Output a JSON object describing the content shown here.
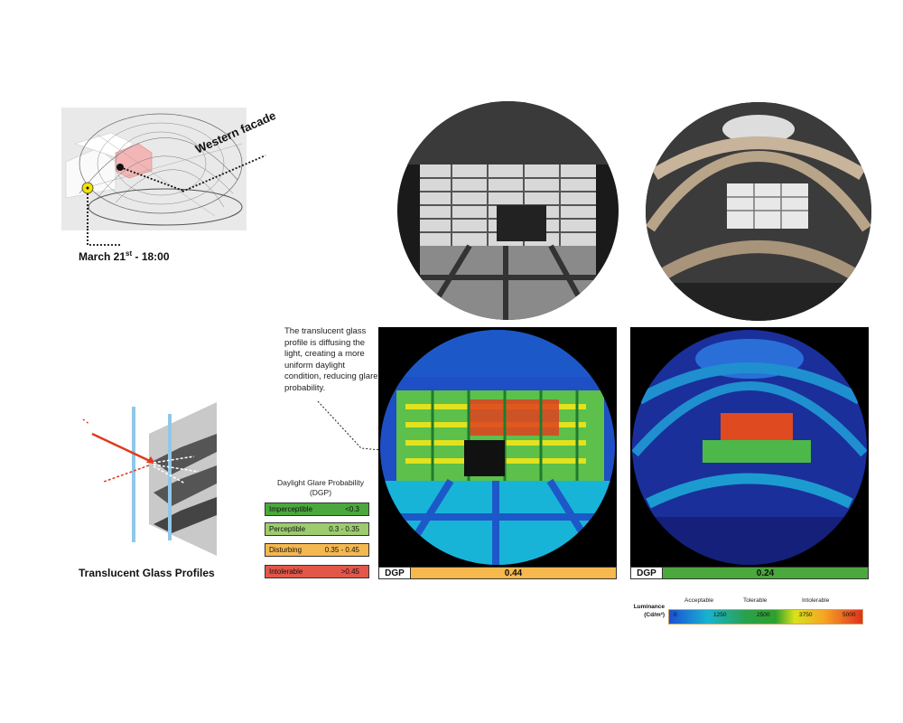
{
  "site": {
    "facade_label": "Western facade",
    "date_label_pre": "March 21",
    "date_label_sup": "st",
    "date_label_post": " - 18:00"
  },
  "profiles": {
    "title": "Translucent Glass Profiles"
  },
  "annotation": {
    "text": "The translucent glass profile is diffusing the light, creating a more uniform daylight condition, reducing glare probability."
  },
  "dgp_legend": {
    "title": "Daylight Glare Probability (DGP)",
    "rows": [
      {
        "label": "Imperceptible",
        "range": "<0.3",
        "color": "#4aa83c"
      },
      {
        "label": "Perceptible",
        "range": "0.3 - 0.35",
        "color": "#9ccc6e"
      },
      {
        "label": "Disturbing",
        "range": "0.35 - 0.45",
        "color": "#f5b850"
      },
      {
        "label": "Intolerable",
        "range": ">0.45",
        "color": "#e2574a"
      }
    ]
  },
  "renders": [
    {
      "dgp_label": "DGP",
      "dgp_value": "0.44",
      "color": "#f7b84e"
    },
    {
      "dgp_label": "DGP",
      "dgp_value": "0.24",
      "color": "#4aa83c"
    }
  ],
  "luminance": {
    "title_line1": "Luminance",
    "title_line2": "(Cd/m²)",
    "categories": [
      "Acceptable",
      "Tolerable",
      "Intolerable"
    ],
    "ticks": [
      "0",
      "1250",
      "2500",
      "3750",
      "5000"
    ]
  }
}
